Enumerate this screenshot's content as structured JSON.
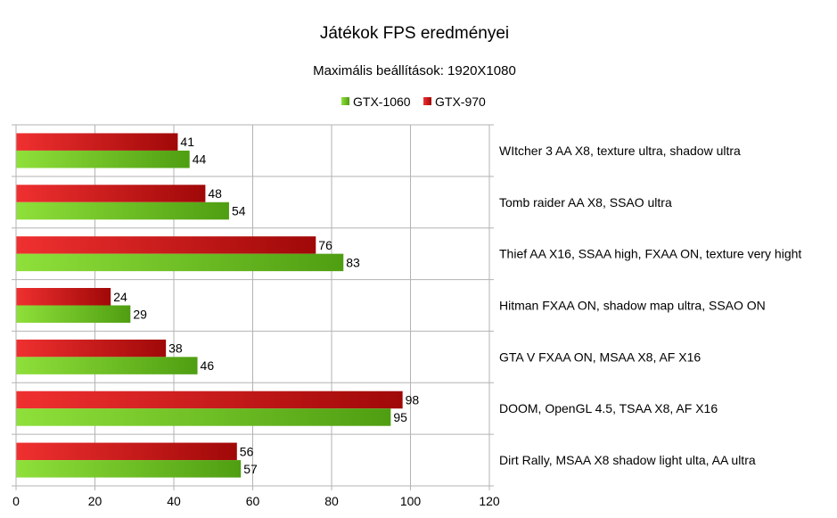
{
  "chart_data": {
    "type": "bar",
    "orientation": "horizontal",
    "title": "Játékok FPS eredményei",
    "subtitle": "Maximális beállítások: 1920X1080",
    "xlabel": "",
    "ylabel": "",
    "xlim": [
      0,
      120
    ],
    "x_ticks": [
      "0",
      "20",
      "40",
      "60",
      "80",
      "100",
      "120"
    ],
    "grid": true,
    "legend_position": "top",
    "categories": [
      "WItcher 3 AA X8, texture ultra, shadow ultra",
      "Tomb raider AA X8, SSAO ultra",
      "Thief AA X16, SSAA high, FXAA ON, texture very hight",
      "Hitman FXAA ON, shadow map ultra, SSAO ON",
      "GTA V FXAA ON, MSAA X8, AF X16",
      "DOOM, OpenGL 4.5, TSAA X8, AF X16",
      "Dirt Rally, MSAA X8 shadow light ulta, AA ultra"
    ],
    "series": [
      {
        "name": "GTX-1060",
        "color": "#66bb22",
        "values": [
          44,
          54,
          83,
          29,
          46,
          95,
          57
        ]
      },
      {
        "name": "GTX-970",
        "color": "#cc1111",
        "values": [
          41,
          48,
          76,
          24,
          38,
          98,
          56
        ]
      }
    ]
  }
}
